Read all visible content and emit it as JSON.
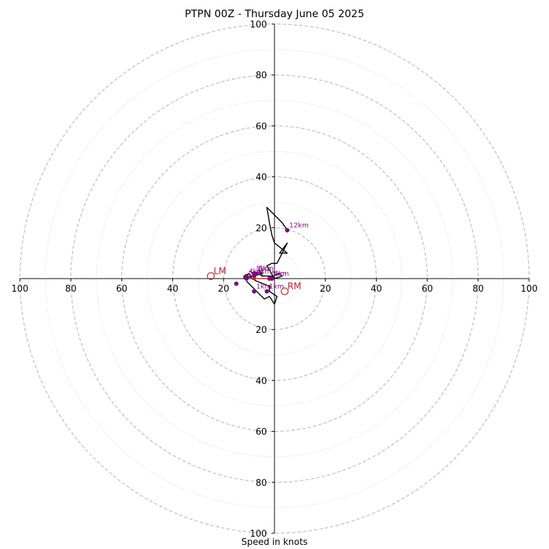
{
  "chart_data": {
    "type": "hodograph",
    "title": "PTPN 00Z - Thursday June 05 2025",
    "xlabel": "Speed in knots",
    "xlim": [
      -100,
      100
    ],
    "ylim": [
      -100,
      100
    ],
    "rings_major": [
      20,
      40,
      60,
      80,
      100
    ],
    "rings_minor": [
      10,
      30,
      50,
      70,
      90
    ],
    "x_ticks": [
      -100,
      -80,
      -60,
      -40,
      -20,
      20,
      40,
      60,
      80,
      100
    ],
    "x_tick_labels": [
      "100",
      "80",
      "60",
      "40",
      "20",
      "20",
      "40",
      "60",
      "80",
      "100"
    ],
    "y_ticks": [
      100,
      80,
      60,
      40,
      20,
      -20,
      -40,
      -60,
      -80,
      -100
    ],
    "y_tick_labels": [
      "100",
      "80",
      "60",
      "40",
      "20",
      "20",
      "40",
      "60",
      "80",
      "100"
    ],
    "grid": true,
    "colors": {
      "hodograph": "#000000",
      "height_markers": "#7b0c7b",
      "storm_motion": "#c0252a",
      "grid": "#bbbbbb"
    },
    "hodograph": {
      "u": [
        -11,
        -7,
        -4,
        -2,
        0,
        1,
        -2,
        -2,
        -7,
        -9,
        -10,
        -12,
        -12,
        -5,
        -6,
        -5,
        -1,
        2,
        3,
        0,
        -3,
        -1,
        1,
        5,
        2,
        5,
        0,
        -1,
        -2,
        -3,
        2,
        3,
        5
      ],
      "v": [
        -1,
        -5,
        -8,
        -7,
        -10,
        -7,
        -5,
        -3,
        -1,
        0,
        2,
        1,
        0,
        2,
        3,
        1,
        1,
        2,
        1,
        0,
        5,
        6,
        6,
        14,
        10,
        10,
        14,
        17,
        22,
        28,
        23,
        22,
        19
      ]
    },
    "height_markers": [
      {
        "label": "",
        "u": -15,
        "v": -2
      },
      {
        "label": "1km",
        "u": -8,
        "v": -5
      },
      {
        "label": "1km",
        "u": -3,
        "v": -5
      },
      {
        "label": "2km",
        "u": -11,
        "v": 0
      },
      {
        "label": "3km",
        "u": -8,
        "v": 1
      },
      {
        "label": "4km",
        "u": -11,
        "v": 1
      },
      {
        "label": "5km",
        "u": -7,
        "v": 2
      },
      {
        "label": "5km",
        "u": -8,
        "v": 2
      },
      {
        "label": "5km",
        "u": -2,
        "v": 0
      },
      {
        "label": "6km",
        "u": -1,
        "v": 0
      },
      {
        "label": "12km",
        "u": 5,
        "v": 19
      }
    ],
    "storm_motion": {
      "LM": {
        "label": "LM",
        "u": -25,
        "v": 1
      },
      "RM": {
        "label": "RM",
        "u": 4,
        "v": -5
      },
      "mean_wind": {
        "u": -8,
        "v": 0
      }
    }
  }
}
